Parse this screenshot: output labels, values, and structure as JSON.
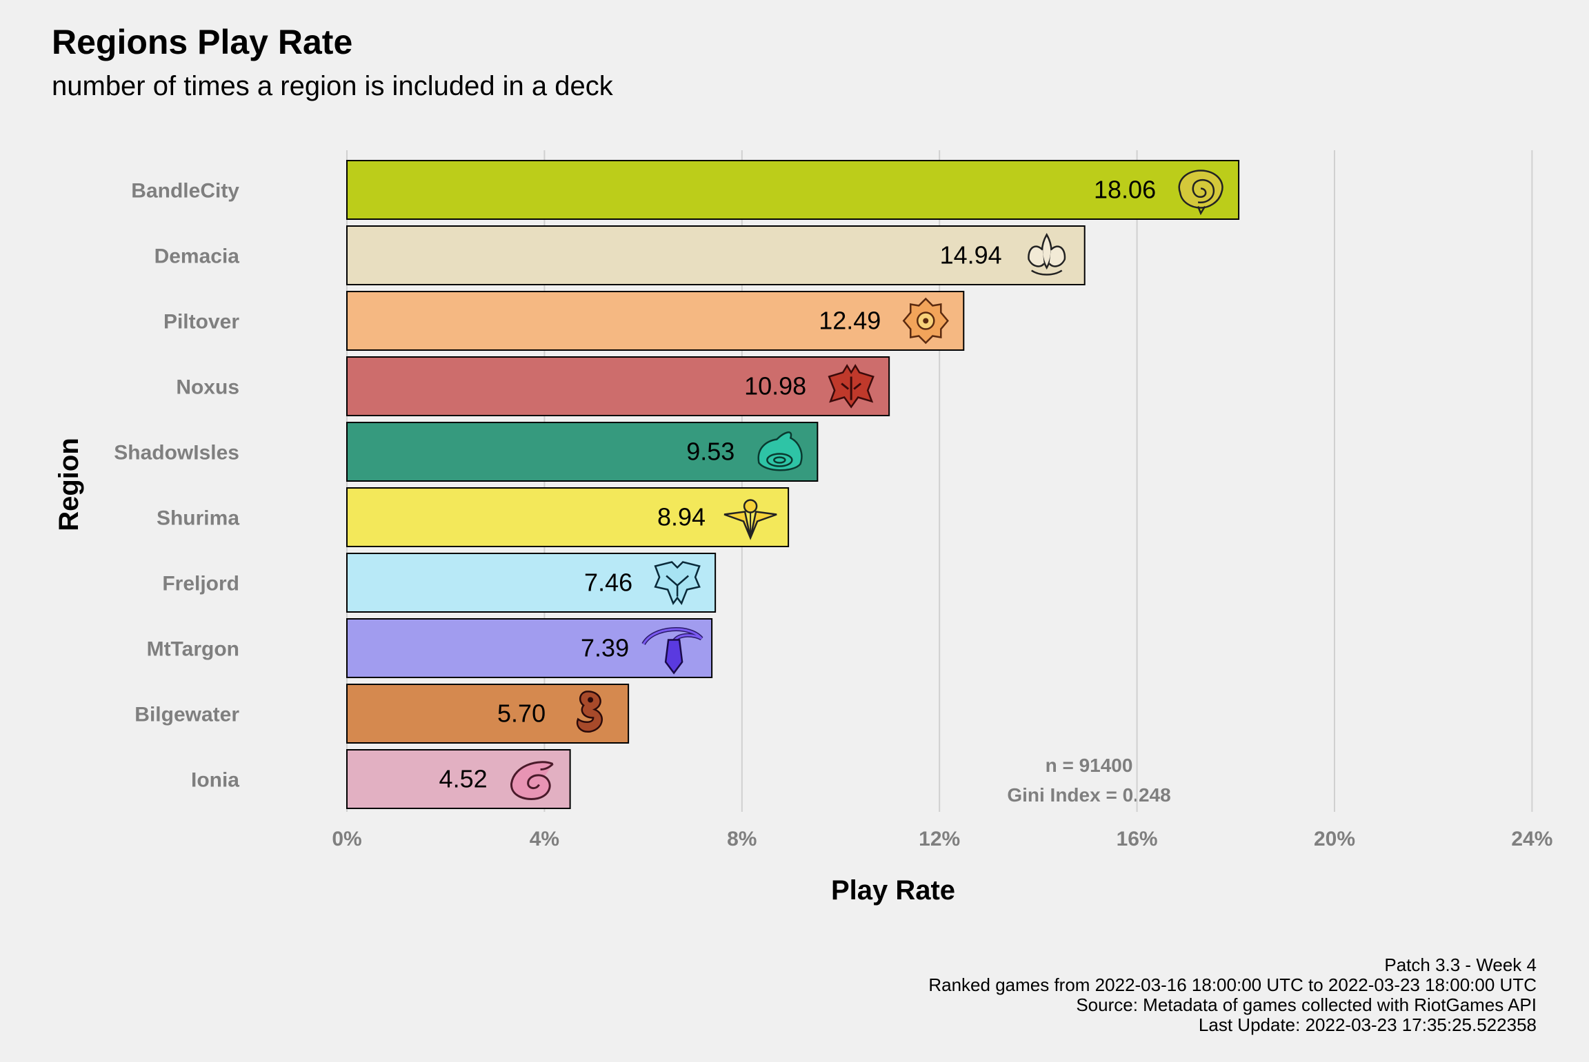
{
  "title": "Regions Play Rate",
  "subtitle": "number of times a region is included in a deck",
  "chart_data": {
    "type": "bar",
    "orientation": "horizontal",
    "title": "Regions Play Rate",
    "subtitle": "number of times a region is included in a deck",
    "xlabel": "Play Rate",
    "ylabel": "Region",
    "xlim": [
      0,
      24
    ],
    "x_ticks": [
      0,
      4,
      8,
      12,
      16,
      20,
      24
    ],
    "x_tick_labels": [
      "0%",
      "4%",
      "8%",
      "12%",
      "16%",
      "20%",
      "24%"
    ],
    "grid": "vertical major gridlines",
    "legend": "none",
    "categories": [
      "BandleCity",
      "Demacia",
      "Piltover",
      "Noxus",
      "ShadowIsles",
      "Shurima",
      "Freljord",
      "MtTargon",
      "Bilgewater",
      "Ionia"
    ],
    "values": [
      18.06,
      14.94,
      12.49,
      10.98,
      9.53,
      8.94,
      7.46,
      7.39,
      5.7,
      4.52
    ],
    "value_labels": [
      "18.06",
      "14.94",
      "12.49",
      "10.98",
      "9.53",
      "8.94",
      "7.46",
      "7.39",
      "5.70",
      "4.52"
    ],
    "bar_colors": [
      "#bccd1a",
      "#e8dec0",
      "#f5b882",
      "#cd6d6c",
      "#369a7e",
      "#f3e85a",
      "#b8e9f7",
      "#a19cef",
      "#d5894f",
      "#e2b0c2"
    ],
    "icons": [
      "bandlecity-icon",
      "demacia-icon",
      "piltover-icon",
      "noxus-icon",
      "shadowisles-icon",
      "shurima-icon",
      "freljord-icon",
      "mttargon-icon",
      "bilgewater-icon",
      "ionia-icon"
    ],
    "annotations": [
      "n = 91400",
      "Gini Index = 0.248"
    ]
  },
  "caption": [
    "Patch 3.3 - Week 4",
    "Ranked games from 2022-03-16 18:00:00 UTC to 2022-03-23 18:00:00 UTC",
    "Source: Metadata of games collected with RiotGames API",
    "Last Update: 2022-03-23 17:35:25.522358"
  ],
  "colors": {
    "background": "#f0f0f0",
    "grid": "#d0d0d0",
    "tick_text": "#7f7f7f",
    "title_text": "#000000"
  }
}
